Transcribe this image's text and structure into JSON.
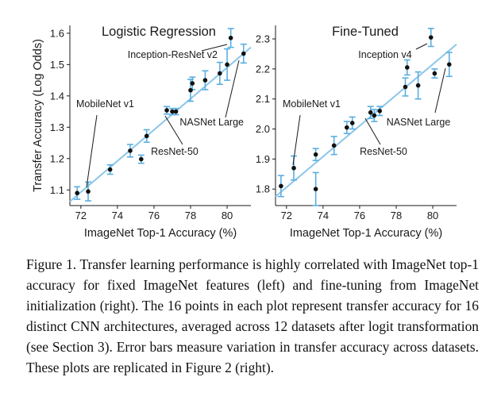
{
  "chart_data": [
    {
      "type": "scatter",
      "title": "Logistic Regression",
      "xlabel": "ImageNet Top-1 Accuracy (%)",
      "ylabel": "Transfer Accuracy (Log Odds)",
      "xlim": [
        71.4,
        81.3
      ],
      "ylim": [
        1.05,
        1.625
      ],
      "xticks": [
        72,
        74,
        76,
        78,
        80
      ],
      "yticks": [
        1.1,
        1.2,
        1.3,
        1.4,
        1.5,
        1.6
      ],
      "ytick_labels": [
        "1.1",
        "1.2",
        "1.3",
        "1.4",
        "1.5",
        "1.6"
      ],
      "grid": false,
      "fit_line": {
        "x": [
          71.4,
          81.3
        ],
        "y": [
          1.063,
          1.555
        ]
      },
      "points": [
        {
          "x": 71.8,
          "y": 1.09,
          "err": 0.02
        },
        {
          "x": 72.4,
          "y": 1.095,
          "err": 0.03
        },
        {
          "x": 73.6,
          "y": 1.165,
          "err": 0.015
        },
        {
          "x": 74.7,
          "y": 1.225,
          "err": 0.02
        },
        {
          "x": 75.3,
          "y": 1.198,
          "err": 0.013
        },
        {
          "x": 75.6,
          "y": 1.272,
          "err": 0.02
        },
        {
          "x": 76.7,
          "y": 1.354,
          "err": 0.012
        },
        {
          "x": 77.0,
          "y": 1.35,
          "err": 0.01
        },
        {
          "x": 77.2,
          "y": 1.35,
          "err": 0.01
        },
        {
          "x": 78.0,
          "y": 1.418,
          "err": 0.035
        },
        {
          "x": 78.1,
          "y": 1.44,
          "err": 0.02
        },
        {
          "x": 78.8,
          "y": 1.45,
          "err": 0.03
        },
        {
          "x": 79.6,
          "y": 1.472,
          "err": 0.035
        },
        {
          "x": 80.0,
          "y": 1.5,
          "err": 0.05
        },
        {
          "x": 80.2,
          "y": 1.585,
          "err": 0.03
        },
        {
          "x": 80.9,
          "y": 1.535,
          "err": 0.03
        }
      ],
      "annotations": [
        {
          "text": "Inception-ResNet v2",
          "x": 80.2,
          "y": 1.585
        },
        {
          "text": "MobileNet v1",
          "x": 72.4,
          "y": 1.095
        },
        {
          "text": "NASNet Large",
          "x": 80.9,
          "y": 1.535
        },
        {
          "text": "ResNet-50",
          "x": 76.7,
          "y": 1.354
        }
      ]
    },
    {
      "type": "scatter",
      "title": "Fine-Tuned",
      "xlabel": "ImageNet Top-1 Accuracy (%)",
      "ylabel": "",
      "xlim": [
        71.4,
        81.3
      ],
      "ylim": [
        1.745,
        2.345
      ],
      "xticks": [
        72,
        74,
        76,
        78,
        80
      ],
      "yticks": [
        1.8,
        1.9,
        2.0,
        2.1,
        2.2,
        2.3
      ],
      "ytick_labels": [
        "1.8",
        "1.9",
        "2.0",
        "2.1",
        "2.2",
        "2.3"
      ],
      "grid": false,
      "fit_line": {
        "x": [
          71.4,
          81.3
        ],
        "y": [
          1.775,
          2.282
        ]
      },
      "points": [
        {
          "x": 71.7,
          "y": 1.81,
          "err": 0.035
        },
        {
          "x": 72.4,
          "y": 1.87,
          "err": 0.04
        },
        {
          "x": 73.6,
          "y": 1.915,
          "err": 0.02
        },
        {
          "x": 73.6,
          "y": 1.8,
          "err": 0.055
        },
        {
          "x": 74.6,
          "y": 1.945,
          "err": 0.03
        },
        {
          "x": 75.3,
          "y": 2.005,
          "err": 0.02
        },
        {
          "x": 75.6,
          "y": 2.02,
          "err": 0.02
        },
        {
          "x": 76.6,
          "y": 2.055,
          "err": 0.02
        },
        {
          "x": 76.8,
          "y": 2.045,
          "err": 0.02
        },
        {
          "x": 77.1,
          "y": 2.06,
          "err": 0.015
        },
        {
          "x": 78.5,
          "y": 2.14,
          "err": 0.03
        },
        {
          "x": 78.6,
          "y": 2.205,
          "err": 0.025
        },
        {
          "x": 79.2,
          "y": 2.145,
          "err": 0.045
        },
        {
          "x": 79.9,
          "y": 2.305,
          "err": 0.03
        },
        {
          "x": 80.1,
          "y": 2.185,
          "err": 0.015
        },
        {
          "x": 80.9,
          "y": 2.215,
          "err": 0.04
        }
      ],
      "annotations": [
        {
          "text": "Inception v4",
          "x": 79.9,
          "y": 2.305
        },
        {
          "text": "MobileNet v1",
          "x": 72.4,
          "y": 1.87
        },
        {
          "text": "NASNet Large",
          "x": 80.9,
          "y": 2.215
        },
        {
          "text": "ResNet-50",
          "x": 76.6,
          "y": 2.055
        }
      ]
    }
  ],
  "colors": {
    "fit_line": "#8cc6e8",
    "error_bar": "#5aaee0",
    "point": "#111111",
    "axis": "#1a1a1a"
  },
  "caption": "Figure 1. Transfer learning performance is highly correlated with ImageNet top-1 accuracy for fixed ImageNet features (left) and fine-tuning from ImageNet initialization (right). The 16 points in each plot represent transfer accuracy for 16 distinct CNN architectures, averaged across 12 datasets after logit transformation (see Section 3). Error bars measure variation in transfer accuracy across datasets. These plots are replicated in Figure 2 (right)."
}
